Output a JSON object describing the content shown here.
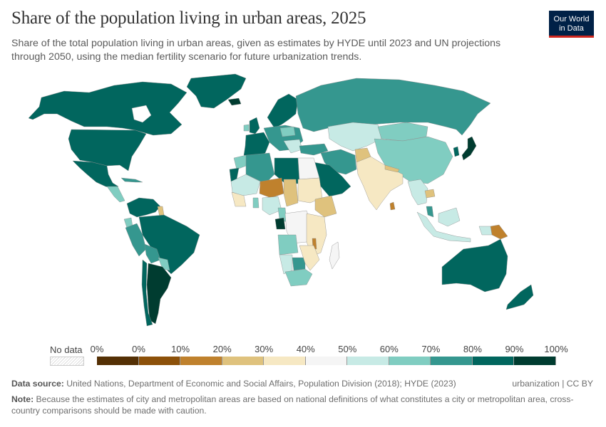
{
  "header": {
    "title": "Share of the population living in urban areas, 2025",
    "subtitle": "Share of the total population living in urban areas, given as estimates by HYDE until 2023 and UN projections through 2050, using the median fertility scenario for future urbanization trends.",
    "logo_line1": "Our World",
    "logo_line2": "in Data",
    "logo_bg": "#002147",
    "logo_accent": "#ce261e"
  },
  "legend": {
    "no_data_label": "No data",
    "tick_labels": [
      "0%",
      "0%",
      "10%",
      "20%",
      "30%",
      "40%",
      "50%",
      "60%",
      "70%",
      "80%",
      "90%",
      "100%"
    ],
    "bins": [
      {
        "from": 0,
        "to": 0,
        "color": "#543005"
      },
      {
        "from": 0,
        "to": 10,
        "color": "#8c510a"
      },
      {
        "from": 10,
        "to": 20,
        "color": "#bf812d"
      },
      {
        "from": 20,
        "to": 30,
        "color": "#dfc27d"
      },
      {
        "from": 30,
        "to": 40,
        "color": "#f6e8c3"
      },
      {
        "from": 40,
        "to": 50,
        "color": "#f5f5f5"
      },
      {
        "from": 50,
        "to": 60,
        "color": "#c7eae5"
      },
      {
        "from": 60,
        "to": 70,
        "color": "#80cdc1"
      },
      {
        "from": 70,
        "to": 80,
        "color": "#35978f"
      },
      {
        "from": 80,
        "to": 90,
        "color": "#01665e"
      },
      {
        "from": 90,
        "to": 100,
        "color": "#003c30"
      }
    ]
  },
  "chart_data": {
    "type": "choropleth",
    "title": "Share of the population living in urban areas, 2025",
    "unit": "%",
    "regions": [
      {
        "name": "Canada",
        "bin": "80-90%"
      },
      {
        "name": "United States",
        "bin": "80-90%"
      },
      {
        "name": "Greenland",
        "bin": "80-90%"
      },
      {
        "name": "Mexico",
        "bin": "80-90%"
      },
      {
        "name": "Central America",
        "bin": "50-70%"
      },
      {
        "name": "Cuba",
        "bin": "70-80%"
      },
      {
        "name": "Colombia/Venezuela",
        "bin": "80-90%"
      },
      {
        "name": "Guyana",
        "bin": "20-30%"
      },
      {
        "name": "Ecuador",
        "bin": "60-70%"
      },
      {
        "name": "Peru",
        "bin": "70-80%"
      },
      {
        "name": "Bolivia",
        "bin": "70-80%"
      },
      {
        "name": "Paraguay",
        "bin": "60-70%"
      },
      {
        "name": "Brazil",
        "bin": "80-90%"
      },
      {
        "name": "Argentina",
        "bin": "90-100%"
      },
      {
        "name": "Uruguay",
        "bin": "90-100%"
      },
      {
        "name": "Chile",
        "bin": "80-90%"
      },
      {
        "name": "Iceland",
        "bin": "90-100%"
      },
      {
        "name": "Western Europe",
        "bin": "80-90%"
      },
      {
        "name": "Scandinavia",
        "bin": "80-90%"
      },
      {
        "name": "Eastern Europe",
        "bin": "60-80%"
      },
      {
        "name": "Russia",
        "bin": "70-80%"
      },
      {
        "name": "Kazakhstan/Central Asia",
        "bin": "50-60%"
      },
      {
        "name": "Mongolia",
        "bin": "60-70%"
      },
      {
        "name": "China",
        "bin": "60-70%"
      },
      {
        "name": "Japan",
        "bin": "90-100%"
      },
      {
        "name": "South Korea",
        "bin": "80-90%"
      },
      {
        "name": "Turkey/Iran",
        "bin": "70-80%"
      },
      {
        "name": "Saudi Arabia",
        "bin": "80-90%"
      },
      {
        "name": "Afghanistan",
        "bin": "20-30%"
      },
      {
        "name": "Pakistan/India",
        "bin": "30-40%"
      },
      {
        "name": "Nepal",
        "bin": "20-30%"
      },
      {
        "name": "Sri Lanka",
        "bin": "10-20%"
      },
      {
        "name": "Southeast Asia",
        "bin": "30-60%"
      },
      {
        "name": "Indonesia",
        "bin": "50-60%"
      },
      {
        "name": "Malaysia",
        "bin": "70-80%"
      },
      {
        "name": "Papua New Guinea",
        "bin": "10-20%"
      },
      {
        "name": "Australia",
        "bin": "80-90%"
      },
      {
        "name": "New Zealand",
        "bin": "80-90%"
      },
      {
        "name": "Morocco",
        "bin": "60-70%"
      },
      {
        "name": "Algeria",
        "bin": "70-80%"
      },
      {
        "name": "Libya",
        "bin": "80-90%"
      },
      {
        "name": "Egypt",
        "bin": "40-50%"
      },
      {
        "name": "Niger",
        "bin": "10-20%"
      },
      {
        "name": "Chad",
        "bin": "20-30%"
      },
      {
        "name": "Sudan",
        "bin": "30-40%"
      },
      {
        "name": "Ethiopia",
        "bin": "20-30%"
      },
      {
        "name": "Nigeria",
        "bin": "50-60%"
      },
      {
        "name": "Gabon",
        "bin": "90-100%"
      },
      {
        "name": "DR Congo",
        "bin": "40-50%"
      },
      {
        "name": "Angola",
        "bin": "60-70%"
      },
      {
        "name": "Namibia",
        "bin": "50-60%"
      },
      {
        "name": "Botswana",
        "bin": "70-80%"
      },
      {
        "name": "South Africa",
        "bin": "60-70%"
      },
      {
        "name": "Tanzania",
        "bin": "30-40%"
      },
      {
        "name": "Malawi",
        "bin": "10-20%"
      },
      {
        "name": "Madagascar",
        "bin": "40-50%"
      }
    ]
  },
  "footer": {
    "source_label": "Data source:",
    "source_text": "United Nations, Department of Economic and Social Affairs, Population Division (2018); HYDE (2023)",
    "right_text": "urbanization | CC BY",
    "note_label": "Note:",
    "note_text": "Because the estimates of city and metropolitan areas are based on national definitions of what constitutes a city or metropolitan area, cross-country comparisons should be made with caution."
  }
}
